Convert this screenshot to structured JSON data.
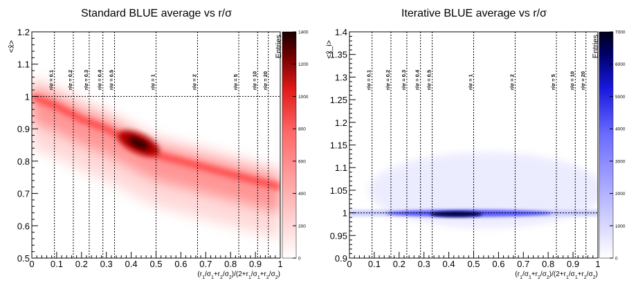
{
  "chart_data": [
    {
      "type": "heatmap",
      "title": "Standard BLUE average vs r/σ",
      "ylabel": "<x̂>",
      "xlabel_parts": [
        "(r",
        "1",
        "/σ",
        "1",
        "+r",
        "2",
        "/σ",
        "2",
        ")/(2+r",
        "1",
        "/σ",
        "1",
        "+r",
        "2",
        "/σ",
        "2",
        ")"
      ],
      "xlim": [
        0,
        1
      ],
      "ylim": [
        0.5,
        1.2
      ],
      "x_ticks": [
        "0",
        "0.1",
        "0.2",
        "0.3",
        "0.4",
        "0.5",
        "0.6",
        "0.7",
        "0.8",
        "0.9",
        "1"
      ],
      "y_ticks": [
        "0.5",
        "0.6",
        "0.7",
        "0.8",
        "0.9",
        "1",
        "1.1",
        "1.2"
      ],
      "colorbar": {
        "label": "Entries",
        "min": 0,
        "max": 1400,
        "ticks": [
          "0",
          "200",
          "400",
          "600",
          "800",
          "1000",
          "1200",
          "1400"
        ],
        "color_low": "#ffffff",
        "color_high": "#ff2a2a",
        "color_peak": "#1a0000"
      },
      "reference_line_y": 1,
      "ratio_lines": [
        {
          "label": "r/σ = 0.1",
          "x": 0.091
        },
        {
          "label": "r/σ = 0.2",
          "x": 0.167
        },
        {
          "label": "r/σ = 0.3",
          "x": 0.231
        },
        {
          "label": "r/σ = 0.4",
          "x": 0.286
        },
        {
          "label": "r/σ = 0.5",
          "x": 0.333
        },
        {
          "label": "r/σ = 1",
          "x": 0.5
        },
        {
          "label": "r/σ = 2",
          "x": 0.667
        },
        {
          "label": "r/σ = 5",
          "x": 0.833
        },
        {
          "label": "r/σ = 10",
          "x": 0.909
        },
        {
          "label": "r/σ = 20",
          "x": 0.952
        }
      ],
      "density_ridge": [
        [
          0.0,
          1.0
        ],
        [
          0.1,
          0.97
        ],
        [
          0.2,
          0.93
        ],
        [
          0.3,
          0.9
        ],
        [
          0.42,
          0.85
        ],
        [
          0.5,
          0.82
        ],
        [
          0.6,
          0.8
        ],
        [
          0.7,
          0.78
        ],
        [
          0.8,
          0.76
        ],
        [
          0.9,
          0.74
        ],
        [
          1.0,
          0.72
        ]
      ],
      "peak": {
        "x": 0.43,
        "y": 0.855,
        "entries": 1400
      }
    },
    {
      "type": "heatmap",
      "title": "Iterative BLUE average vs r/σ",
      "ylabel": "<x̂_i>",
      "xlabel_parts": [
        "(r",
        "1",
        "/σ",
        "1",
        "+r",
        "2",
        "/σ",
        "2",
        ")/(2+r",
        "1",
        "/σ",
        "1",
        "+r",
        "2",
        "/σ",
        "2",
        ")"
      ],
      "xlim": [
        0,
        1
      ],
      "ylim": [
        0.9,
        1.4
      ],
      "x_ticks": [
        "0",
        "0.1",
        "0.2",
        "0.3",
        "0.4",
        "0.5",
        "0.6",
        "0.7",
        "0.8",
        "0.9",
        "1"
      ],
      "y_ticks": [
        "0.9",
        "0.95",
        "1",
        "1.05",
        "1.1",
        "1.15",
        "1.2",
        "1.25",
        "1.3",
        "1.35",
        "1.4"
      ],
      "colorbar": {
        "label": "Entries",
        "min": 0,
        "max": 7000,
        "ticks": [
          "0",
          "1000",
          "2000",
          "3000",
          "4000",
          "5000",
          "6000",
          "7000"
        ],
        "color_low": "#ffffff",
        "color_high": "#2a2aff",
        "color_peak": "#00001a"
      },
      "reference_line_y": 1,
      "ratio_lines": [
        {
          "label": "r/σ = 0.1",
          "x": 0.091
        },
        {
          "label": "r/σ = 0.2",
          "x": 0.167
        },
        {
          "label": "r/σ = 0.3",
          "x": 0.231
        },
        {
          "label": "r/σ = 0.4",
          "x": 0.286
        },
        {
          "label": "r/σ = 0.5",
          "x": 0.333
        },
        {
          "label": "r/σ = 1",
          "x": 0.5
        },
        {
          "label": "r/σ = 2",
          "x": 0.667
        },
        {
          "label": "r/σ = 5",
          "x": 0.833
        },
        {
          "label": "r/σ = 10",
          "x": 0.909
        },
        {
          "label": "r/σ = 20",
          "x": 0.952
        }
      ],
      "density_ridge": [
        [
          0.0,
          1.0
        ],
        [
          0.5,
          1.0
        ],
        [
          1.0,
          1.0
        ]
      ],
      "peak": {
        "x": 0.43,
        "y": 0.997,
        "entries": 7000
      }
    }
  ]
}
